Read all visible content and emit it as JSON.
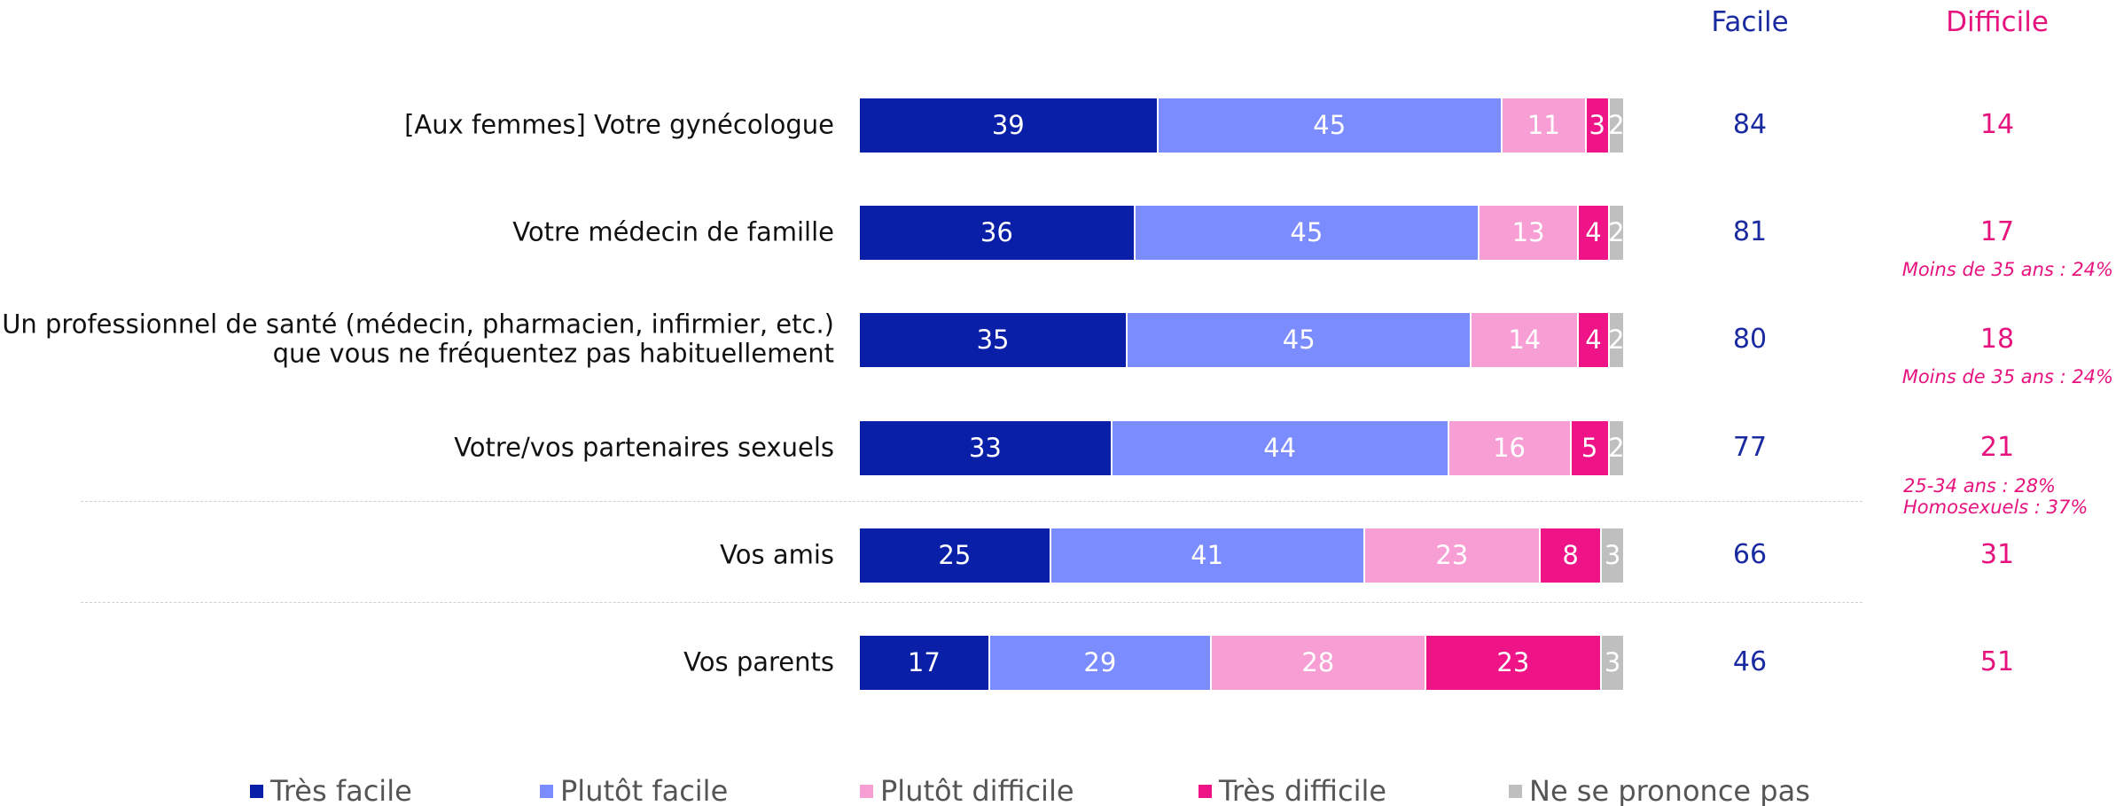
{
  "chart_data": {
    "type": "bar",
    "orientation": "horizontal",
    "stacked": true,
    "xlim": [
      0,
      100
    ],
    "categories": [
      "[Aux femmes] Votre gynécologue",
      "Votre médecin de famille",
      "Un professionnel de santé (médecin, pharmacien, infirmier, etc.)\nque vous ne fréquentez pas habituellement",
      "Votre/vos partenaires sexuels",
      "Vos amis",
      "Vos parents"
    ],
    "series": [
      {
        "name": "Très facile",
        "color": "#0a1fa8",
        "values": [
          39,
          36,
          35,
          33,
          25,
          17
        ]
      },
      {
        "name": "Plutôt facile",
        "color": "#7b8cff",
        "values": [
          45,
          45,
          45,
          44,
          41,
          29
        ]
      },
      {
        "name": "Plutôt difficile",
        "color": "#f79fd4",
        "values": [
          11,
          13,
          14,
          16,
          23,
          28
        ]
      },
      {
        "name": "Très difficile",
        "color": "#ee1386",
        "values": [
          3,
          4,
          4,
          5,
          8,
          23
        ]
      },
      {
        "name": "Ne se prononce pas",
        "color": "#bfbfbf",
        "values": [
          2,
          2,
          2,
          2,
          3,
          3
        ]
      }
    ],
    "totals": [
      {
        "name": "Facile",
        "color": "#1a2aa0",
        "values": [
          84,
          81,
          80,
          77,
          66,
          46
        ]
      },
      {
        "name": "Difficile",
        "color": "#e6137f",
        "values": [
          14,
          17,
          18,
          21,
          31,
          51
        ]
      }
    ],
    "notes": [
      null,
      "Moins de 35 ans : 24%",
      "Moins de 35 ans : 24%",
      "25-34 ans : 28%\nHomosexuels : 37%",
      null,
      null
    ]
  }
}
